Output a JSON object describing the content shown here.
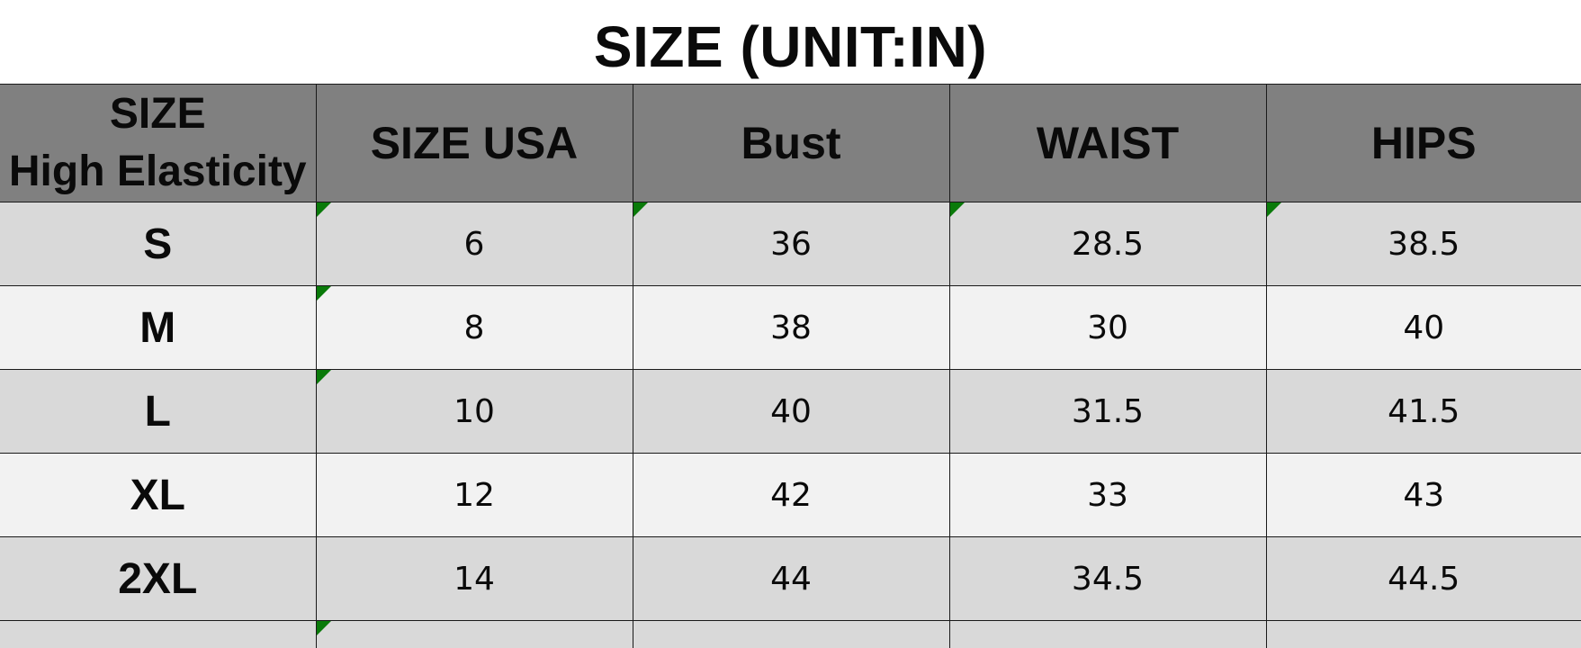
{
  "title": "SIZE (UNIT:IN)",
  "table": {
    "headers": {
      "size_line1": "SIZE",
      "size_line2": "High Elasticity",
      "size_usa": "SIZE USA",
      "bust": "Bust",
      "waist": "WAIST",
      "hips": "HIPS"
    },
    "rows": [
      {
        "size": "S",
        "usa": "6",
        "bust": "36",
        "waist": "28.5",
        "hips": "38.5"
      },
      {
        "size": "M",
        "usa": "8",
        "bust": "38",
        "waist": "30",
        "hips": "40"
      },
      {
        "size": "L",
        "usa": "10",
        "bust": "40",
        "waist": "31.5",
        "hips": "41.5"
      },
      {
        "size": "XL",
        "usa": "12",
        "bust": "42",
        "waist": "33",
        "hips": "43"
      },
      {
        "size": "2XL",
        "usa": "14",
        "bust": "44",
        "waist": "34.5",
        "hips": "44.5"
      }
    ]
  },
  "colors": {
    "header_bg": "#808080",
    "row_dark": "#d9d9d9",
    "row_light": "#f2f2f2",
    "cell_flag": "#0a7a0a"
  }
}
